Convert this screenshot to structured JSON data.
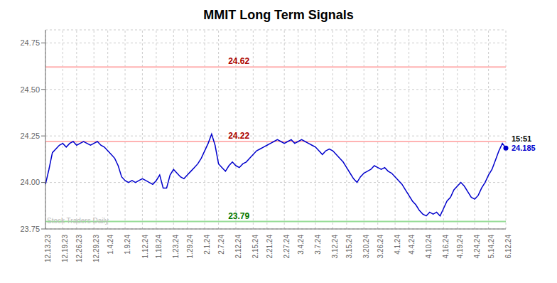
{
  "chart_data": {
    "type": "line",
    "title": "MMIT Long Term Signals",
    "grid": true,
    "color": "#0000cc",
    "ylim": [
      23.75,
      24.82
    ],
    "yticks": [
      23.75,
      {
        "value": 24.0,
        "label": "24.00"
      },
      24.25,
      {
        "value": 24.5,
        "label": "24.50"
      },
      24.75
    ],
    "categories": [
      "12.13.23",
      null,
      null,
      null,
      null,
      "12.19.23",
      null,
      null,
      null,
      "12.26.23",
      null,
      null,
      null,
      null,
      "12.29.23",
      null,
      null,
      null,
      "1.4.24",
      null,
      null,
      null,
      null,
      "1.9.24",
      null,
      null,
      null,
      null,
      "1.12.24",
      null,
      null,
      null,
      "1.18.24",
      null,
      null,
      null,
      null,
      "1.23.24",
      null,
      null,
      null,
      "1.29.24",
      null,
      null,
      null,
      null,
      "2.1.24",
      null,
      null,
      null,
      "2.7.24",
      null,
      null,
      null,
      null,
      "2.12.24",
      null,
      null,
      null,
      null,
      "2.15.24",
      null,
      null,
      null,
      "2.21.24",
      null,
      null,
      null,
      null,
      "2.27.24",
      null,
      null,
      null,
      "3.4.24",
      null,
      null,
      null,
      null,
      "3.7.24",
      null,
      null,
      null,
      null,
      "3.12.24",
      null,
      null,
      null,
      "3.15.24",
      null,
      null,
      null,
      null,
      "3.20.24",
      null,
      null,
      null,
      "3.26.24",
      null,
      null,
      null,
      null,
      "4.1.24",
      null,
      null,
      null,
      "4.4.24",
      null,
      null,
      null,
      null,
      "4.10.24",
      null,
      null,
      null,
      null,
      "4.16.24",
      null,
      null,
      null,
      "4.19.24",
      null,
      null,
      null,
      null,
      "4.24.24",
      null,
      null,
      null,
      "5.14.24",
      null,
      null,
      null,
      null,
      "6.12.24"
    ],
    "values": [
      23.99,
      24.07,
      24.16,
      24.18,
      24.2,
      24.21,
      24.19,
      24.21,
      24.22,
      24.2,
      24.21,
      24.22,
      24.21,
      24.2,
      24.21,
      24.22,
      24.2,
      24.19,
      24.17,
      24.15,
      24.13,
      24.09,
      24.03,
      24.01,
      24.0,
      24.01,
      24.0,
      24.01,
      24.02,
      24.01,
      24.0,
      23.99,
      24.01,
      24.04,
      23.97,
      23.97,
      24.04,
      24.07,
      24.05,
      24.03,
      24.02,
      24.04,
      24.06,
      24.08,
      24.1,
      24.13,
      24.17,
      24.21,
      24.26,
      24.2,
      24.1,
      24.08,
      24.06,
      24.09,
      24.11,
      24.09,
      24.08,
      24.1,
      24.11,
      24.13,
      24.15,
      24.17,
      24.18,
      24.19,
      24.2,
      24.21,
      24.22,
      24.23,
      24.22,
      24.21,
      24.22,
      24.23,
      24.21,
      24.22,
      24.23,
      24.22,
      24.21,
      24.2,
      24.19,
      24.17,
      24.15,
      24.17,
      24.18,
      24.17,
      24.15,
      24.13,
      24.11,
      24.08,
      24.05,
      24.02,
      24.0,
      24.03,
      24.05,
      24.06,
      24.07,
      24.09,
      24.08,
      24.07,
      24.08,
      24.06,
      24.05,
      24.03,
      24.01,
      23.99,
      23.96,
      23.93,
      23.9,
      23.88,
      23.85,
      23.83,
      23.82,
      23.84,
      23.83,
      23.84,
      23.82,
      23.86,
      23.9,
      23.92,
      23.96,
      23.98,
      24.0,
      23.98,
      23.95,
      23.92,
      23.91,
      23.93,
      23.97,
      24.0,
      24.04,
      24.07,
      24.12,
      24.17,
      24.21,
      24.185
    ],
    "reference_lines": [
      {
        "value": 24.62,
        "label": "24.62",
        "color": "#ffb3b3",
        "text_color": "#aa0000"
      },
      {
        "value": 24.22,
        "label": "24.22",
        "color": "#ffb3b3",
        "text_color": "#aa0000"
      },
      {
        "value": 23.79,
        "label": "23.79",
        "color": "#99dd99",
        "text_color": "#007700"
      }
    ],
    "annotations": [
      {
        "text": "15:51",
        "x": "6.12.24",
        "y": 24.22,
        "color": "#000000"
      },
      {
        "text": "24.185",
        "x": "6.12.24",
        "y": 24.17,
        "color": "#0000cc"
      },
      {
        "text": "Stock Traders Daily",
        "x": "12.13.23",
        "y": 23.782,
        "color": "#bbbbbb"
      }
    ]
  }
}
